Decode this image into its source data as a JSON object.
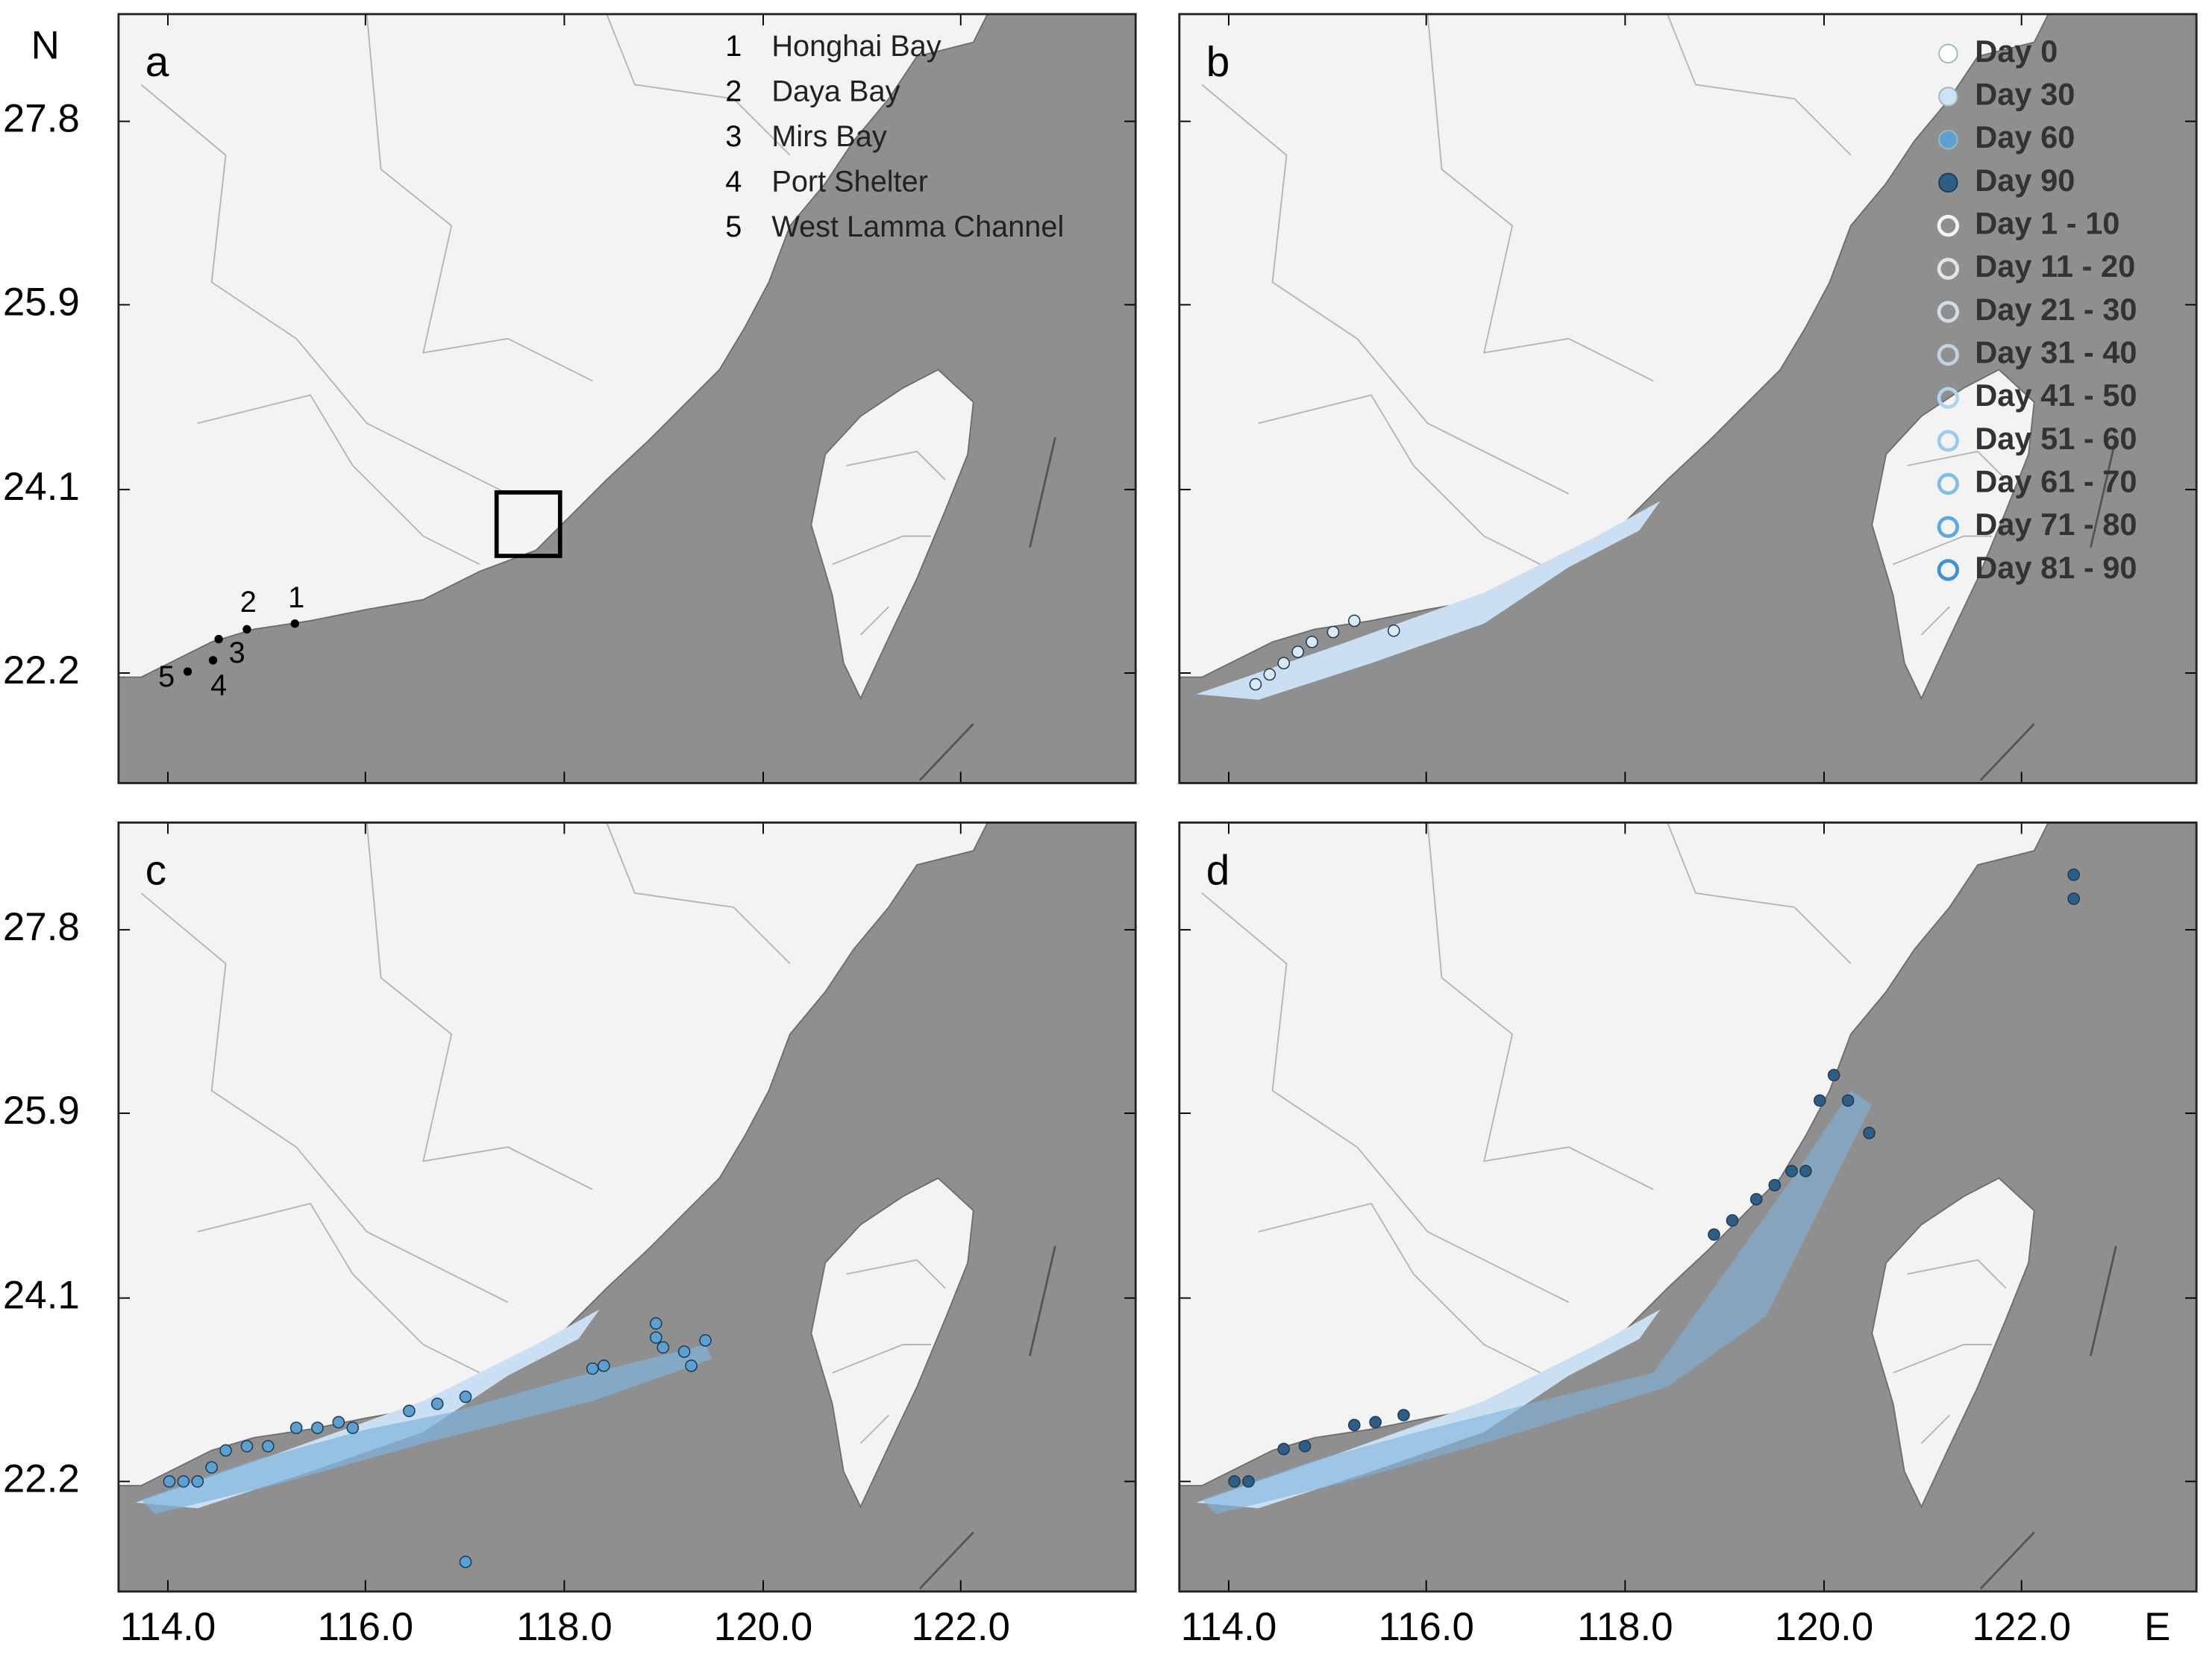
{
  "panels": [
    {
      "label": "a"
    },
    {
      "label": "b"
    },
    {
      "label": "c"
    },
    {
      "label": "d"
    }
  ],
  "axes": {
    "north": "N",
    "east": "E",
    "lat_labels": [
      "27.8",
      "25.9",
      "24.1",
      "22.2"
    ],
    "lon_labels": [
      "114.0",
      "116.0",
      "118.0",
      "120.0",
      "122.0"
    ]
  },
  "sites": [
    {
      "number": "1",
      "name": "Honghai Bay"
    },
    {
      "number": "2",
      "name": "Daya Bay"
    },
    {
      "number": "3",
      "name": "Mirs Bay"
    },
    {
      "number": "4",
      "name": "Port Shelter"
    },
    {
      "number": "5",
      "name": "West Lamma Channel"
    }
  ],
  "legend": [
    "Day 0",
    "Day 30",
    "Day 60",
    "Day 90",
    "Day 1 - 10",
    "Day 11 - 20",
    "Day 21 - 30",
    "Day 31 - 40",
    "Day 41 - 50",
    "Day 51 - 60",
    "Day 61 - 70",
    "Day 71 - 80",
    "Day 81 - 90"
  ]
}
